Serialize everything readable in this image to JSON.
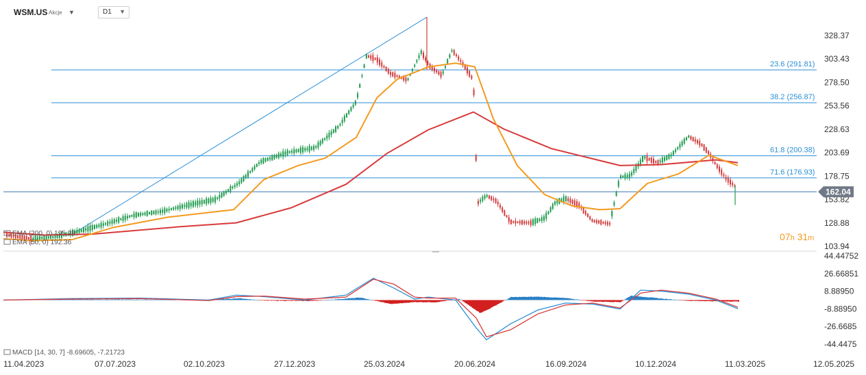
{
  "header": {
    "ticker": "WSM.US",
    "asset_type": "Akcje",
    "timeframe": "D1"
  },
  "timer": {
    "hours": "07",
    "h_unit": "h",
    "minutes": "31",
    "m_unit": "m"
  },
  "legend": {
    "ema200": "EMA (200, 0) 195.28",
    "ema50": "EMA (50, 0) 192.36",
    "macd": "MACD [14, 30, 7] -8.69605, -7.21723"
  },
  "colors": {
    "up": "#1f9a4c",
    "down": "#d23a3a",
    "ema50": "#f39a1e",
    "ema200": "#d8393a",
    "fib": "#2a8fd6",
    "price_tag": "#707a86",
    "macd_line": "#2a8fd6",
    "signal_line": "#d8393a",
    "hist_pos": "#2a80c6",
    "hist_neg": "#d21f1f"
  },
  "chart_data": [
    {
      "type": "candlestick",
      "title": "WSM.US",
      "x_tick_labels": [
        "11.04.2023",
        "07.07.2023",
        "02.10.2023",
        "27.12.2023",
        "25.03.2024",
        "20.06.2024",
        "16.09.2024",
        "10.12.2024",
        "11.03.2025",
        "12.05.2025"
      ],
      "y_tick_labels": [
        "328.37",
        "303.43",
        "278.50",
        "253.56",
        "228.63",
        "203.69",
        "178.75",
        "153.82",
        "128.88",
        "103.94"
      ],
      "ylim": [
        103.94,
        328.37
      ],
      "last_price": 162.04,
      "fibonacci_levels": [
        {
          "label": "23.6 (291.81)",
          "value": 291.81
        },
        {
          "label": "38.2 (256.87)",
          "value": 256.87
        },
        {
          "label": "61.8 (200.38)",
          "value": 200.38
        },
        {
          "label": "71.6 (176.93)",
          "value": 176.93
        }
      ],
      "trendline": {
        "from": [
          "11.04.2023",
          118
        ],
        "to": [
          "06.05.2024",
          348
        ]
      },
      "series": [
        {
          "name": "EMA (200, 0)",
          "values": [
            [
              0,
              119
            ],
            [
              60,
              116
            ],
            [
              130,
              117
            ],
            [
              260,
              125
            ],
            [
              340,
              129
            ],
            [
              420,
              145
            ],
            [
              500,
              170
            ],
            [
              560,
              203
            ],
            [
              620,
              228
            ],
            [
              686,
              247
            ],
            [
              730,
              229
            ],
            [
              800,
              208
            ],
            [
              900,
              190
            ],
            [
              960,
              191
            ],
            [
              1040,
              196
            ],
            [
              1072,
              193
            ]
          ]
        },
        {
          "name": "EMA (50, 0)",
          "values": [
            [
              0,
              112
            ],
            [
              40,
              110
            ],
            [
              100,
              111
            ],
            [
              160,
              124
            ],
            [
              240,
              135
            ],
            [
              300,
              140
            ],
            [
              336,
              143
            ],
            [
              380,
              175
            ],
            [
              430,
              190
            ],
            [
              470,
              198
            ],
            [
              515,
              220
            ],
            [
              545,
              262
            ],
            [
              575,
              282
            ],
            [
              620,
              295
            ],
            [
              660,
              299
            ],
            [
              688,
              295
            ],
            [
              715,
              240
            ],
            [
              750,
              190
            ],
            [
              790,
              159
            ],
            [
              830,
              147
            ],
            [
              870,
              143
            ],
            [
              900,
              144
            ],
            [
              940,
              171
            ],
            [
              985,
              181
            ],
            [
              1030,
              201
            ],
            [
              1072,
              190
            ]
          ]
        }
      ],
      "candles_sketch": [
        [
          5,
          116
        ],
        [
          40,
          112
        ],
        [
          75,
          114
        ],
        [
          110,
          120
        ],
        [
          150,
          128
        ],
        [
          190,
          137
        ],
        [
          230,
          141
        ],
        [
          270,
          148
        ],
        [
          310,
          154
        ],
        [
          345,
          172
        ],
        [
          375,
          194
        ],
        [
          415,
          204
        ],
        [
          455,
          209
        ],
        [
          490,
          232
        ],
        [
          515,
          258
        ],
        [
          530,
          307
        ],
        [
          545,
          303
        ],
        [
          565,
          288
        ],
        [
          590,
          281
        ],
        [
          610,
          311
        ],
        [
          622,
          296
        ],
        [
          640,
          286
        ],
        [
          655,
          313
        ],
        [
          672,
          297
        ],
        [
          686,
          281
        ],
        [
          692,
          150
        ],
        [
          705,
          158
        ],
        [
          720,
          152
        ],
        [
          740,
          130
        ],
        [
          770,
          129
        ],
        [
          790,
          134
        ],
        [
          805,
          150
        ],
        [
          820,
          155
        ],
        [
          840,
          148
        ],
        [
          860,
          131
        ],
        [
          885,
          128
        ],
        [
          900,
          178
        ],
        [
          915,
          179
        ],
        [
          935,
          199
        ],
        [
          955,
          193
        ],
        [
          975,
          201
        ],
        [
          1000,
          221
        ],
        [
          1018,
          213
        ],
        [
          1030,
          203
        ],
        [
          1040,
          191
        ],
        [
          1055,
          176
        ],
        [
          1068,
          168
        ],
        [
          1073,
          162
        ]
      ]
    },
    {
      "type": "line",
      "title": "MACD [14, 30, 7]",
      "y_tick_labels": [
        "44.44752",
        "26.66851",
        "8.88950",
        "-8.88950",
        "-26.6685",
        "-44.4475"
      ],
      "ylim": [
        -44.44752,
        44.44752
      ],
      "series": [
        {
          "name": "MACD",
          "values": [
            [
              0,
              0
            ],
            [
              100,
              1.5
            ],
            [
              200,
              2
            ],
            [
              300,
              0
            ],
            [
              340,
              5
            ],
            [
              380,
              3.5
            ],
            [
              440,
              0
            ],
            [
              500,
              5
            ],
            [
              540,
              22
            ],
            [
              570,
              12
            ],
            [
              600,
              1
            ],
            [
              620,
              3
            ],
            [
              660,
              0
            ],
            [
              690,
              -28
            ],
            [
              705,
              -40
            ],
            [
              740,
              -24
            ],
            [
              780,
              -10
            ],
            [
              820,
              -3
            ],
            [
              860,
              -4
            ],
            [
              900,
              -9
            ],
            [
              930,
              10
            ],
            [
              960,
              9
            ],
            [
              1000,
              6
            ],
            [
              1040,
              0
            ],
            [
              1072,
              -8.69605
            ]
          ]
        },
        {
          "name": "Signal",
          "values": [
            [
              0,
              0
            ],
            [
              100,
              1
            ],
            [
              200,
              1.5
            ],
            [
              300,
              -0.5
            ],
            [
              340,
              3.5
            ],
            [
              380,
              4
            ],
            [
              440,
              1
            ],
            [
              500,
              3
            ],
            [
              540,
              21
            ],
            [
              570,
              16
            ],
            [
              600,
              3
            ],
            [
              620,
              2
            ],
            [
              660,
              2
            ],
            [
              690,
              -18
            ],
            [
              705,
              -37
            ],
            [
              740,
              -30
            ],
            [
              780,
              -14
            ],
            [
              820,
              -5
            ],
            [
              860,
              -3
            ],
            [
              900,
              -8
            ],
            [
              930,
              7
            ],
            [
              960,
              10
            ],
            [
              1000,
              7
            ],
            [
              1040,
              1
            ],
            [
              1072,
              -7.21723
            ]
          ]
        }
      ],
      "histogram": [
        [
          0,
          0.4
        ],
        [
          100,
          0.6
        ],
        [
          200,
          0.5
        ],
        [
          300,
          0.4
        ],
        [
          345,
          1.8
        ],
        [
          380,
          -0.6
        ],
        [
          450,
          -0.9
        ],
        [
          520,
          2.5
        ],
        [
          565,
          -4
        ],
        [
          600,
          -2
        ],
        [
          630,
          -2.2
        ],
        [
          665,
          1
        ],
        [
          695,
          -13
        ],
        [
          705,
          -10
        ],
        [
          740,
          3
        ],
        [
          780,
          3.4
        ],
        [
          820,
          2
        ],
        [
          860,
          -1.5
        ],
        [
          900,
          -2
        ],
        [
          915,
          4.5
        ],
        [
          960,
          1.5
        ],
        [
          1000,
          -0.8
        ],
        [
          1040,
          -1.2
        ],
        [
          1072,
          -1.5
        ]
      ]
    }
  ]
}
